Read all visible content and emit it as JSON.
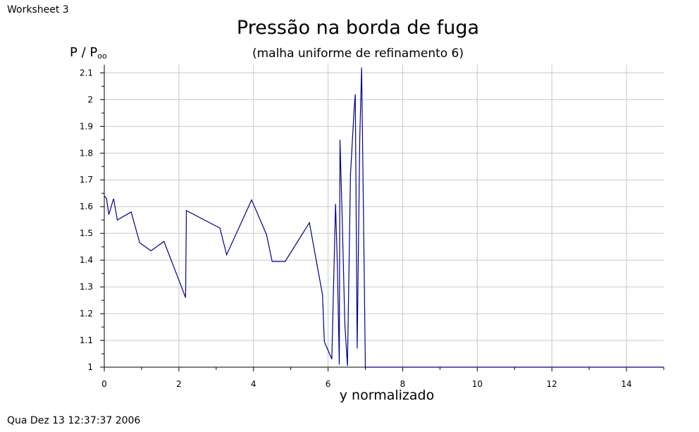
{
  "worksheet_label": "Worksheet 3",
  "timestamp": "Qua Dez 13 12:37:37 2006",
  "chart_data": {
    "type": "line",
    "title": "Pressão na borda de fuga",
    "subtitle": "(malha uniforme de refinamento 6)",
    "ylabel": "P / P",
    "ylabel_subscript": "oo",
    "xlabel": "y normalizado",
    "xlim": [
      0,
      15
    ],
    "ylim": [
      1.0,
      2.13
    ],
    "xticks": [
      0,
      2,
      4,
      6,
      8,
      10,
      12,
      14
    ],
    "yticks": [
      1,
      1.1,
      1.2,
      1.3,
      1.4,
      1.5,
      1.6,
      1.7,
      1.8,
      1.9,
      2,
      2.1
    ],
    "ytick_labels": [
      "1",
      "1.1",
      "1.2",
      "1.3",
      "1.4",
      "1.5",
      "1.6",
      "1.7",
      "1.8",
      "1.9",
      "2",
      "2.1"
    ],
    "grid": true,
    "line_color": "#00008b",
    "series": [
      {
        "x": [
          0.0,
          0.06,
          0.12,
          0.25,
          0.35,
          0.72,
          0.95,
          1.25,
          1.6,
          2.18,
          2.2,
          3.1,
          3.28,
          3.95,
          4.35,
          4.5,
          4.85,
          5.5,
          5.85,
          5.9,
          6.1,
          6.2,
          6.25,
          6.3,
          6.32,
          6.38,
          6.45,
          6.52,
          6.6,
          6.7,
          6.73,
          6.78,
          6.85,
          6.9,
          6.95,
          7.0,
          7.3,
          7.8,
          15.0
        ],
        "y": [
          1.64,
          1.63,
          1.57,
          1.63,
          1.55,
          1.58,
          1.465,
          1.435,
          1.47,
          1.26,
          1.585,
          1.52,
          1.42,
          1.625,
          1.495,
          1.395,
          1.395,
          1.54,
          1.27,
          1.095,
          1.03,
          1.61,
          1.38,
          1.01,
          1.85,
          1.55,
          1.16,
          1.005,
          1.72,
          1.97,
          2.02,
          1.07,
          1.86,
          2.12,
          1.56,
          1.0,
          1.0,
          1.0,
          1.0
        ]
      }
    ]
  }
}
